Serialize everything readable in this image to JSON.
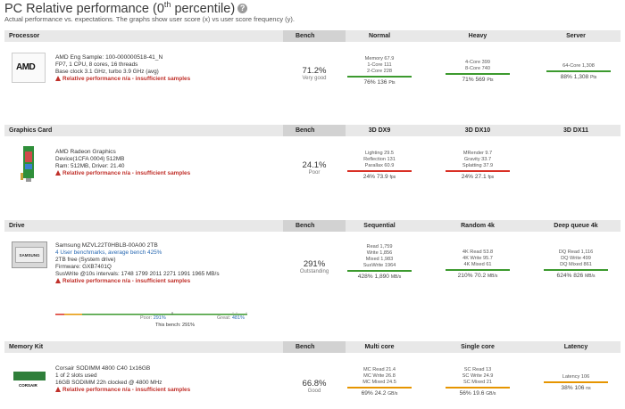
{
  "page": {
    "title_prefix": "PC Relative performance (0",
    "title_sup": "th",
    "title_suffix": " percentile)",
    "help": "?",
    "subtitle": "Actual performance vs. expectations. The graphs show user score (x) vs user score frequency (y)."
  },
  "processor": {
    "header": {
      "component": "Processor",
      "bench": "Bench",
      "c1": "Normal",
      "c2": "Heavy",
      "c3": "Server"
    },
    "logo": "AMD",
    "name": "AMD Eng Sample: 100-000000518-41_N",
    "line1": "FP7, 1 CPU, 8 cores, 16 threads",
    "line2": "Base clock 3.1 GHz, turbo 3.9 GHz (avg)",
    "warning": "Relative performance n/a - insufficient samples",
    "bench_pct": "71.2%",
    "bench_label": "Very good",
    "normal": {
      "lines": [
        "Memory 67.9",
        "1-Core 111",
        "2-Core 228"
      ],
      "summary": "76% 136",
      "unit": "Pts",
      "color": "#3c9a2e"
    },
    "heavy": {
      "lines": [
        "4-Core 399",
        "8-Core 740"
      ],
      "summary": "71% 569",
      "unit": "Pts",
      "color": "#3c9a2e"
    },
    "server": {
      "lines": [
        "64-Core 1,308"
      ],
      "summary": "88% 1,308",
      "unit": "Pts",
      "color": "#3c9a2e"
    }
  },
  "graphics": {
    "header": {
      "component": "Graphics Card",
      "bench": "Bench",
      "c1": "3D DX9",
      "c2": "3D DX10",
      "c3": "3D DX11"
    },
    "name": "AMD Radeon Graphics",
    "line1": "Device(1CFA 0004) 512MB",
    "line2": "Ram: 512MB, Driver: 21.40",
    "warning": "Relative performance n/a - insufficient samples",
    "bench_pct": "24.1%",
    "bench_label": "Poor",
    "dx9": {
      "lines": [
        "Lighting 29.5",
        "Reflection 131",
        "Parallax 60.9"
      ],
      "summary": "24% 73.9",
      "unit": "fps",
      "color": "#d93025"
    },
    "dx10": {
      "lines": [
        "MRender 9.7",
        "Gravity 33.7",
        "Splatting 37.9"
      ],
      "summary": "24% 27.1",
      "unit": "fps",
      "color": "#d93025"
    }
  },
  "drive": {
    "header": {
      "component": "Drive",
      "bench": "Bench",
      "c1": "Sequential",
      "c2": "Random 4k",
      "c3": "Deep queue 4k"
    },
    "logo": "SAMSUNG",
    "name": "Samsung MZVL22T0HBLB-00A00 2TB",
    "benchmarks_link": "4 User benchmarks, average bench 425%",
    "line1": "2TB free (System drive)",
    "line2": "Firmware: GXB7401Q",
    "line3": "SusWrite @10s intervals: 1748 1799 2011 2271 1991 1965 MB/s",
    "warning": "Relative performance n/a - insufficient samples",
    "bench_pct": "291%",
    "bench_label": "Outstanding",
    "sequential": {
      "lines": [
        "Read 1,759",
        "Write 1,856",
        "Mixed 1,983",
        "SusWrite 1964"
      ],
      "summary": "428% 1,890",
      "unit": "MB/s",
      "color": "#3c9a2e"
    },
    "random": {
      "lines": [
        "4K Read 53.8",
        "4K Write 95.7",
        "4K Mixed 61"
      ],
      "summary": "210% 70.2",
      "unit": "MB/s",
      "color": "#3c9a2e"
    },
    "deep": {
      "lines": [
        "DQ Read 1,116",
        "DQ Write 499",
        "DQ Mixed 861"
      ],
      "summary": "624% 826",
      "unit": "MB/s",
      "color": "#3c9a2e"
    },
    "histogram": {
      "poor_label": "Poor:",
      "poor_value": "291%",
      "great_label": "Great:",
      "great_value": "481%",
      "this_bench": "This bench: 291%"
    }
  },
  "memory": {
    "header": {
      "component": "Memory Kit",
      "bench": "Bench",
      "c1": "Multi core",
      "c2": "Single core",
      "c3": "Latency"
    },
    "logo": "CORSAIR",
    "name": "Corsair SODIMM 4800 C40 1x16GB",
    "line1": "1 of 2 slots used",
    "line2": "16GB SODIMM 22h clocked @ 4800 MHz",
    "warning": "Relative performance n/a - insufficient samples",
    "bench_pct": "66.8%",
    "bench_label": "Good",
    "multi": {
      "lines": [
        "MC Read 21.4",
        "MC Write 26.8",
        "MC Mixed 24.5"
      ],
      "summary": "69% 24.2",
      "unit": "GB/s",
      "color": "#e69500"
    },
    "single": {
      "lines": [
        "SC Read 13",
        "SC Write 24.9",
        "SC Mixed 21"
      ],
      "summary": "56% 19.6",
      "unit": "GB/s",
      "color": "#e69500"
    },
    "latency": {
      "lines": [
        "Latency 106"
      ],
      "summary": "38% 106",
      "unit": "ns",
      "color": "#e69500"
    }
  }
}
